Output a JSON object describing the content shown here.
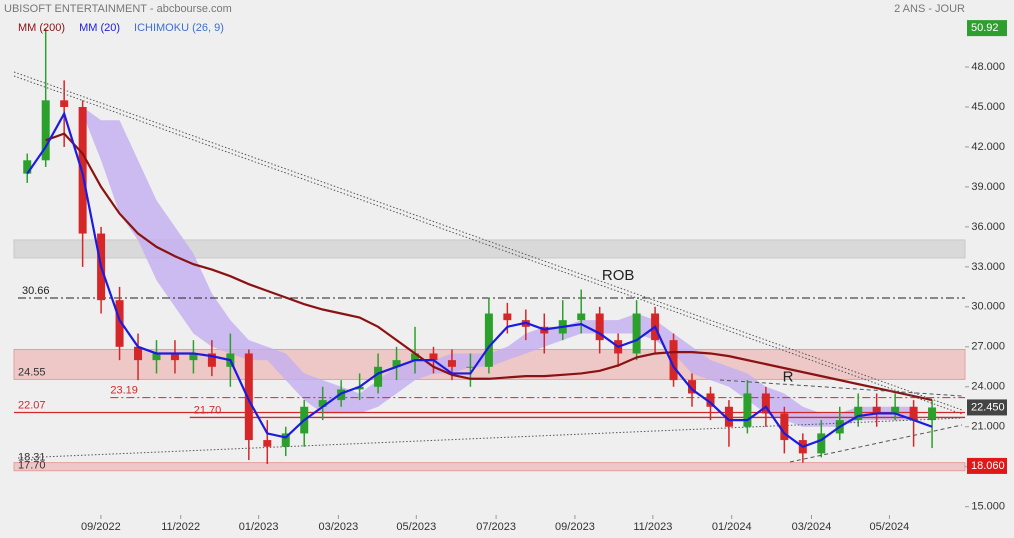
{
  "chart_data": {
    "type": "candlestick",
    "title": "UBISOFT ENTERTAINMENT - abcbourse.com",
    "subtitle": "2 ANS - JOUR",
    "xlim": [
      0,
      50.2
    ],
    "xticks": [
      {
        "value": 4.49,
        "label": "09/2022"
      },
      {
        "value": 8.81,
        "label": "11/2022"
      },
      {
        "value": 13.03,
        "label": "01/2023"
      },
      {
        "value": 17.35,
        "label": "03/2023"
      },
      {
        "value": 21.57,
        "label": "05/2023"
      },
      {
        "value": 25.89,
        "label": "07/2023"
      },
      {
        "value": 30.16,
        "label": "09/2023"
      },
      {
        "value": 34.38,
        "label": "11/2023"
      },
      {
        "value": 38.65,
        "label": "01/2024"
      },
      {
        "value": 42.97,
        "label": "03/2024"
      },
      {
        "value": 47.19,
        "label": "05/2024"
      }
    ],
    "ylim": [
      12.65,
      53.03
    ],
    "yticks": [
      {
        "value": 15,
        "label": "15.000"
      },
      {
        "value": 18,
        "label": "18.000"
      },
      {
        "value": 21,
        "label": "21.000"
      },
      {
        "value": 24,
        "label": "24.000"
      },
      {
        "value": 27,
        "label": "27.000"
      },
      {
        "value": 30,
        "label": "30.000"
      },
      {
        "value": 33,
        "label": "33.000"
      },
      {
        "value": 36,
        "label": "36.000"
      },
      {
        "value": 39,
        "label": "39.000"
      },
      {
        "value": 42,
        "label": "42.000"
      },
      {
        "value": 45,
        "label": "45.000"
      },
      {
        "value": 48,
        "label": "48.000"
      }
    ],
    "open": [
      40.0,
      41.0,
      45.5,
      45.0,
      35.5,
      30.5,
      27.0,
      26.0,
      26.5,
      26.0,
      26.5,
      25.5,
      26.5,
      20.0,
      19.5,
      20.5,
      22.5,
      23.0,
      23.8,
      24.0,
      25.5,
      26.0,
      26.5,
      26.0,
      25.5,
      25.5,
      29.5,
      29.0,
      28.5,
      28.0,
      29.0,
      29.5,
      27.5,
      26.5,
      29.5,
      27.5,
      24.5,
      23.5,
      22.5,
      21.0,
      23.5,
      22.0,
      20.0,
      19.0,
      20.5,
      21.5,
      22.5,
      22.0,
      22.5,
      21.5
    ],
    "high": [
      41.5,
      50.92,
      47,
      45.5,
      36,
      31.5,
      28,
      27.5,
      27.5,
      27.5,
      27.5,
      28,
      26.8,
      21.5,
      21,
      23,
      24,
      24.5,
      25,
      26.5,
      27,
      28.5,
      27,
      26.8,
      26.5,
      30.7,
      30.3,
      29.8,
      29.5,
      30.5,
      31.3,
      30,
      28,
      30.5,
      30,
      28,
      25,
      24,
      23,
      24.5,
      24,
      22.5,
      20.5,
      21.5,
      22.5,
      23.5,
      23.5,
      23.5,
      23,
      23
    ],
    "low": [
      39.3,
      40.5,
      42,
      33,
      29.5,
      26,
      24.5,
      25,
      25,
      25,
      24.8,
      24,
      18.5,
      18.2,
      18.8,
      19.5,
      21.5,
      22.5,
      23,
      23.5,
      24.5,
      25,
      25,
      24.5,
      24,
      25,
      28,
      27.5,
      26.5,
      27.5,
      28,
      26.5,
      25.5,
      26,
      26.5,
      24,
      22.5,
      21.5,
      19.5,
      20.5,
      21,
      19,
      18.3,
      18.7,
      20,
      21,
      21,
      21.5,
      19.5,
      19.4
    ],
    "close": [
      41.0,
      45.5,
      45.0,
      35.5,
      30.5,
      27.0,
      26.0,
      26.5,
      26.0,
      26.5,
      25.5,
      26.5,
      20.0,
      19.5,
      20.5,
      22.5,
      23.0,
      23.8,
      24.0,
      25.5,
      26.0,
      26.5,
      26.0,
      25.5,
      25.5,
      29.5,
      29.0,
      28.5,
      28.0,
      29.0,
      29.5,
      27.5,
      26.5,
      29.5,
      27.5,
      24.5,
      23.5,
      22.5,
      21.0,
      23.5,
      22.0,
      20.0,
      19.0,
      20.5,
      21.5,
      22.5,
      22.0,
      22.5,
      21.5,
      22.45
    ],
    "up_color": "#2ca02c",
    "down_color": "#d62728",
    "series": [
      {
        "name": "MM (200)",
        "color": "#8b1212",
        "values": [
          null,
          42.5,
          43,
          41.5,
          39,
          37,
          35.5,
          34.5,
          33.8,
          33.2,
          32.8,
          32.3,
          31.7,
          31.2,
          30.7,
          30.2,
          29.8,
          29.5,
          29.2,
          28.5,
          27.5,
          26.5,
          25.5,
          24.9,
          24.6,
          24.6,
          24.7,
          24.8,
          24.8,
          24.9,
          25,
          25.2,
          25.6,
          26.2,
          26.5,
          26.6,
          26.6,
          26.5,
          26.3,
          26,
          25.7,
          25.4,
          25.1,
          24.8,
          24.5,
          24.2,
          23.9,
          23.6,
          23.3,
          23
        ]
      },
      {
        "name": "MM (20)",
        "color": "#1c1ce0",
        "values": [
          40,
          42,
          44.5,
          40,
          33,
          29,
          27,
          26.5,
          26.5,
          26.5,
          26.3,
          26,
          23,
          20.5,
          20.2,
          21.5,
          22.5,
          23.5,
          24,
          25,
          25.5,
          26,
          26,
          25,
          25,
          27,
          28.5,
          28.8,
          28.3,
          28.5,
          28.7,
          28,
          27,
          27.5,
          28.5,
          25.5,
          23.8,
          22.8,
          21.5,
          21.5,
          22.5,
          20.5,
          19.5,
          20,
          21,
          21.8,
          22,
          22,
          21.5,
          21
        ]
      },
      {
        "name": "ICHIMOKU (26, 9)",
        "color": "#c3aef0",
        "legend_color": "#3b6fd6",
        "lower": [
          null,
          null,
          null,
          44.5,
          41,
          37,
          35,
          32,
          30,
          28,
          27,
          26.5,
          26,
          26,
          24.5,
          23,
          22,
          22,
          22,
          22.5,
          23.5,
          24.5,
          25,
          25,
          25.5,
          25.5,
          26,
          26.5,
          27,
          27.5,
          28,
          28,
          28,
          28,
          27.5,
          26.5,
          25,
          24.5,
          24,
          23,
          22,
          21.5,
          21,
          21,
          21,
          21.5,
          21.5,
          21.5,
          21.5,
          null
        ],
        "upper": [
          null,
          null,
          null,
          45,
          44,
          44,
          41,
          38,
          36,
          34,
          31,
          29,
          27.5,
          27,
          26.5,
          25,
          24.5,
          24,
          23.5,
          24.5,
          25.5,
          26,
          26,
          26.5,
          26.5,
          26.5,
          27,
          28,
          28.5,
          28.5,
          29,
          29,
          29,
          29.5,
          29,
          28,
          27,
          26,
          25.5,
          25,
          24,
          23.5,
          22.5,
          22,
          22,
          22.5,
          22.5,
          22.5,
          22.5,
          null
        ]
      }
    ],
    "zones": [
      {
        "low": 33.67,
        "high": 35.02,
        "color": "#d9d9d9"
      },
      {
        "low": 24.55,
        "high": 26.8,
        "color": "#eec7c7"
      },
      {
        "low": {
          "value": 17.7,
          "label": "17.70"
        },
        "high": 18.31,
        "color": "#eec7c7"
      }
    ],
    "levels": [
      {
        "value": 30.66,
        "color": "#222222",
        "dash": true
      },
      {
        "value": 23.19,
        "color": "#d62728",
        "dash": true
      },
      {
        "value": 22.07,
        "color": "#d62728",
        "dash": false
      },
      {
        "value": {
          "value": 21.7,
          "label": "21.70"
        },
        "color": "#d62728",
        "dash": false
      }
    ],
    "price_tags": [
      {
        "value": 50.92,
        "color": "#2e9e2e"
      },
      {
        "value": {
          "value": 22.45,
          "label": "22.450"
        },
        "color": "#444444"
      },
      {
        "value": {
          "value": 18.06,
          "label": "18.060"
        },
        "color": "#e01818"
      }
    ],
    "annotations": [
      {
        "text": "ROB",
        "x": 32.5,
        "y": 32.3
      },
      {
        "text": "R",
        "x": 41.7,
        "y": 24.7
      }
    ]
  }
}
